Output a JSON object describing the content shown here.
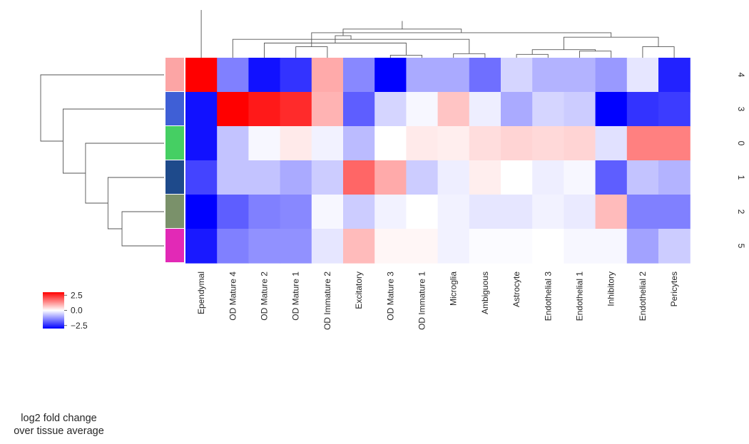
{
  "chart_data": {
    "type": "heatmap",
    "columns": [
      "Ependymal",
      "OD Mature 4",
      "OD Mature 2",
      "OD Mature 1",
      "OD Immature 2",
      "Excitatory",
      "OD Mature 3",
      "OD Immature 1",
      "Microglia",
      "Ambiguous",
      "Astrocyte",
      "Endothelial 3",
      "Endothelial 1",
      "Inhibitory",
      "Endothelial 2",
      "Pericytes"
    ],
    "rows": [
      "4",
      "3",
      "0",
      "1",
      "2",
      "5"
    ],
    "row_colors": [
      "#fca5a5",
      "#3f5fd6",
      "#45cf63",
      "#1e4a8b",
      "#7a916a",
      "#e229b6"
    ],
    "values": [
      [
        3.0,
        -1.5,
        -2.8,
        -2.4,
        1.0,
        -1.4,
        -3.0,
        -1.0,
        -1.0,
        -1.7,
        -0.5,
        -0.9,
        -0.9,
        -1.2,
        -0.3,
        -2.6
      ],
      [
        -2.8,
        3.0,
        2.7,
        2.5,
        0.9,
        -1.9,
        -0.5,
        -0.1,
        0.7,
        -0.2,
        -1.0,
        -0.5,
        -0.6,
        -3.0,
        -2.4,
        -2.3
      ],
      [
        -2.8,
        -0.7,
        -0.1,
        0.25,
        -0.15,
        -0.8,
        0.0,
        0.25,
        0.2,
        0.4,
        0.5,
        0.45,
        0.5,
        -0.35,
        1.5,
        1.5
      ],
      [
        -2.2,
        -0.7,
        -0.7,
        -1.0,
        -0.6,
        1.8,
        1.0,
        -0.6,
        -0.2,
        0.2,
        0.0,
        -0.2,
        -0.1,
        -1.9,
        -0.7,
        -0.9
      ],
      [
        -3.0,
        -1.9,
        -1.5,
        -1.4,
        -0.1,
        -0.6,
        -0.15,
        0.0,
        -0.15,
        -0.3,
        -0.3,
        -0.15,
        -0.25,
        0.8,
        -1.5,
        -1.5
      ],
      [
        -2.7,
        -1.5,
        -1.3,
        -1.3,
        -0.3,
        0.8,
        0.1,
        0.1,
        -0.15,
        -0.05,
        -0.05,
        0.0,
        -0.1,
        -0.1,
        -1.1,
        -0.6
      ]
    ],
    "vmin": -3.0,
    "vmax": 3.0,
    "colormap": [
      "#0000ff",
      "#ffffff",
      "#ff0000"
    ],
    "colorbar": {
      "ticks": [
        2.5,
        0.0,
        -2.5
      ],
      "tick_labels": [
        "2.5",
        "0.0",
        "−2.5"
      ],
      "title": "log2 fold change\nover tissue average"
    },
    "col_dendrogram": {
      "leaf_order": [
        0,
        1,
        2,
        3,
        4,
        5,
        6,
        7,
        8,
        9,
        10,
        11,
        12,
        13,
        14,
        15
      ],
      "merges": [
        [
          6,
          7,
          0.35
        ],
        [
          8,
          9,
          0.55
        ],
        [
          10,
          11,
          0.45
        ],
        [
          12,
          13,
          0.9
        ],
        [
          18,
          19,
          1.1
        ],
        [
          14,
          15,
          1.5
        ],
        [
          3,
          4,
          1.5
        ],
        [
          2,
          16,
          2.0
        ],
        [
          1,
          17,
          2.5
        ],
        [
          20,
          21,
          2.8
        ],
        [
          23,
          24,
          3.0
        ],
        [
          22,
          25,
          3.4
        ],
        [
          26,
          27,
          3.9
        ],
        [
          28,
          29,
          5.0
        ],
        [
          0,
          30,
          6.5
        ]
      ]
    },
    "row_dendrogram": {
      "leaf_order": [
        0,
        1,
        2,
        3,
        4,
        5
      ],
      "merges": [
        [
          4,
          5,
          1.5
        ],
        [
          3,
          6,
          2.0
        ],
        [
          2,
          7,
          2.8
        ],
        [
          1,
          8,
          3.6
        ],
        [
          0,
          9,
          4.4
        ]
      ]
    }
  }
}
